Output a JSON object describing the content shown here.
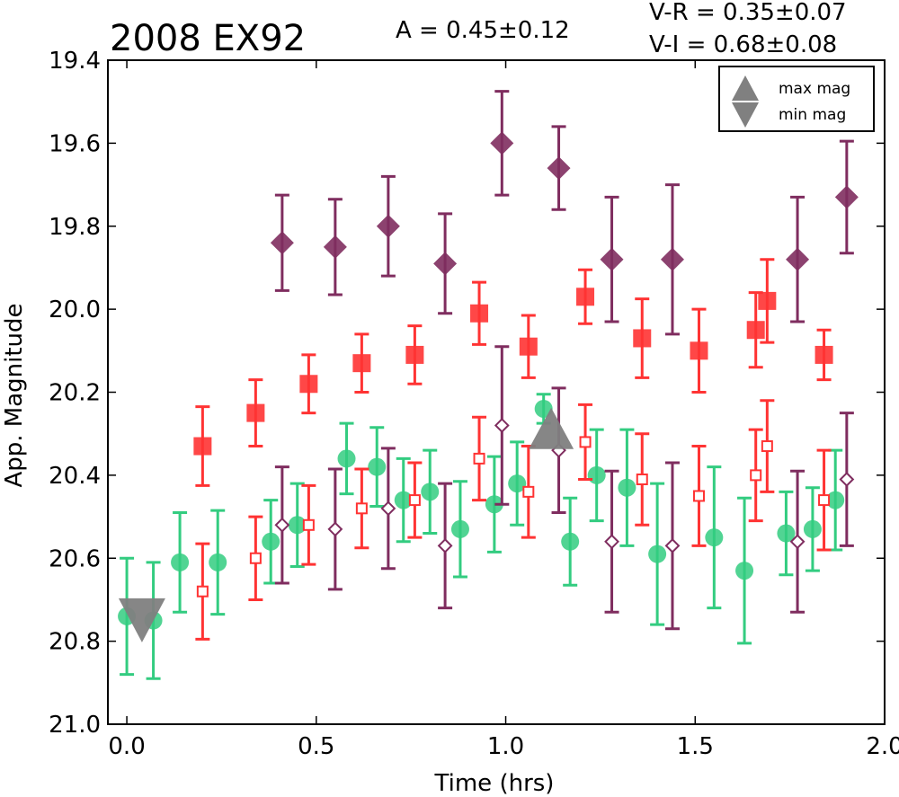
{
  "chart_data": {
    "type": "scatter",
    "title": "2008 EX92",
    "amplitude_text": "A  = 0.45±0.12",
    "color_text_1": "V-R = 0.35±0.07",
    "color_text_2": "V-I  = 0.68±0.08",
    "xlabel": "Time (hrs)",
    "ylabel": "App. Magnitude",
    "xlim": [
      -0.05,
      2.0
    ],
    "ylim": [
      21.0,
      19.4
    ],
    "y_inverted": true,
    "x_ticks": [
      "0.0",
      "0.5",
      "1.0",
      "1.5",
      "2.0"
    ],
    "x_tick_values": [
      0.0,
      0.5,
      1.0,
      1.5,
      2.0
    ],
    "y_ticks": [
      "19.4",
      "19.6",
      "19.8",
      "20.0",
      "20.2",
      "20.4",
      "20.6",
      "20.8",
      "21.0"
    ],
    "y_tick_values": [
      19.4,
      19.6,
      19.8,
      20.0,
      20.2,
      20.4,
      20.6,
      20.8,
      21.0
    ],
    "grid": false,
    "legend_position": "top-right",
    "legend": [
      {
        "label": "max mag",
        "marker": "triangle-up",
        "color": "#808080"
      },
      {
        "label": "min mag",
        "marker": "triangle-down",
        "color": "#808080"
      }
    ],
    "series": [
      {
        "marker": "diamond-filled",
        "color": "#7f2d5f",
        "points": [
          {
            "x": 0.41,
            "y": 19.84,
            "err": 0.115
          },
          {
            "x": 0.55,
            "y": 19.85,
            "err": 0.115
          },
          {
            "x": 0.69,
            "y": 19.8,
            "err": 0.12
          },
          {
            "x": 0.84,
            "y": 19.89,
            "err": 0.12
          },
          {
            "x": 0.99,
            "y": 19.6,
            "err": 0.125
          },
          {
            "x": 1.14,
            "y": 19.66,
            "err": 0.1
          },
          {
            "x": 1.28,
            "y": 19.88,
            "err": 0.15
          },
          {
            "x": 1.44,
            "y": 19.88,
            "err": 0.18
          },
          {
            "x": 1.77,
            "y": 19.88,
            "err": 0.15
          },
          {
            "x": 1.9,
            "y": 19.73,
            "err": 0.135
          }
        ]
      },
      {
        "marker": "square-filled",
        "color": "#ff3333",
        "points": [
          {
            "x": 0.2,
            "y": 20.33,
            "err": 0.095
          },
          {
            "x": 0.34,
            "y": 20.25,
            "err": 0.08
          },
          {
            "x": 0.48,
            "y": 20.18,
            "err": 0.07
          },
          {
            "x": 0.62,
            "y": 20.13,
            "err": 0.07
          },
          {
            "x": 0.76,
            "y": 20.11,
            "err": 0.07
          },
          {
            "x": 0.93,
            "y": 20.01,
            "err": 0.075
          },
          {
            "x": 1.06,
            "y": 20.09,
            "err": 0.075
          },
          {
            "x": 1.21,
            "y": 19.97,
            "err": 0.065
          },
          {
            "x": 1.36,
            "y": 20.07,
            "err": 0.095
          },
          {
            "x": 1.51,
            "y": 20.1,
            "err": 0.1
          },
          {
            "x": 1.66,
            "y": 20.05,
            "err": 0.09
          },
          {
            "x": 1.69,
            "y": 19.98,
            "err": 0.1
          },
          {
            "x": 1.84,
            "y": 20.11,
            "err": 0.06
          }
        ]
      },
      {
        "marker": "circle-filled",
        "color": "#33cc80",
        "points": [
          {
            "x": 0.0,
            "y": 20.74,
            "err": 0.14
          },
          {
            "x": 0.07,
            "y": 20.75,
            "err": 0.14
          },
          {
            "x": 0.14,
            "y": 20.61,
            "err": 0.12
          },
          {
            "x": 0.24,
            "y": 20.61,
            "err": 0.125
          },
          {
            "x": 0.38,
            "y": 20.56,
            "err": 0.1
          },
          {
            "x": 0.45,
            "y": 20.52,
            "err": 0.1
          },
          {
            "x": 0.58,
            "y": 20.36,
            "err": 0.085
          },
          {
            "x": 0.66,
            "y": 20.38,
            "err": 0.095
          },
          {
            "x": 0.73,
            "y": 20.46,
            "err": 0.1
          },
          {
            "x": 0.8,
            "y": 20.44,
            "err": 0.1
          },
          {
            "x": 0.88,
            "y": 20.53,
            "err": 0.115
          },
          {
            "x": 0.97,
            "y": 20.47,
            "err": 0.115
          },
          {
            "x": 1.03,
            "y": 20.42,
            "err": 0.1
          },
          {
            "x": 1.1,
            "y": 20.24,
            "err": 0.035
          },
          {
            "x": 1.17,
            "y": 20.56,
            "err": 0.105
          },
          {
            "x": 1.24,
            "y": 20.4,
            "err": 0.11
          },
          {
            "x": 1.32,
            "y": 20.43,
            "err": 0.14
          },
          {
            "x": 1.4,
            "y": 20.59,
            "err": 0.17
          },
          {
            "x": 1.55,
            "y": 20.55,
            "err": 0.17
          },
          {
            "x": 1.63,
            "y": 20.63,
            "err": 0.175
          },
          {
            "x": 1.74,
            "y": 20.54,
            "err": 0.1
          },
          {
            "x": 1.81,
            "y": 20.53,
            "err": 0.1
          },
          {
            "x": 1.87,
            "y": 20.46,
            "err": 0.12
          }
        ]
      },
      {
        "marker": "square-open",
        "color": "#ff3333",
        "points": [
          {
            "x": 0.2,
            "y": 20.68,
            "err": 0.115
          },
          {
            "x": 0.34,
            "y": 20.6,
            "err": 0.1
          },
          {
            "x": 0.48,
            "y": 20.52,
            "err": 0.095
          },
          {
            "x": 0.62,
            "y": 20.48,
            "err": 0.095
          },
          {
            "x": 0.76,
            "y": 20.46,
            "err": 0.09
          },
          {
            "x": 0.93,
            "y": 20.36,
            "err": 0.1
          },
          {
            "x": 1.06,
            "y": 20.44,
            "err": 0.11
          },
          {
            "x": 1.21,
            "y": 20.32,
            "err": 0.09
          },
          {
            "x": 1.36,
            "y": 20.41,
            "err": 0.11
          },
          {
            "x": 1.51,
            "y": 20.45,
            "err": 0.12
          },
          {
            "x": 1.66,
            "y": 20.4,
            "err": 0.11
          },
          {
            "x": 1.69,
            "y": 20.33,
            "err": 0.11
          },
          {
            "x": 1.84,
            "y": 20.46,
            "err": 0.12
          }
        ]
      },
      {
        "marker": "diamond-open",
        "color": "#7f2d5f",
        "points": [
          {
            "x": 0.41,
            "y": 20.52,
            "err": 0.14
          },
          {
            "x": 0.55,
            "y": 20.53,
            "err": 0.145
          },
          {
            "x": 0.69,
            "y": 20.48,
            "err": 0.145
          },
          {
            "x": 0.84,
            "y": 20.57,
            "err": 0.15
          },
          {
            "x": 0.99,
            "y": 20.28,
            "err": 0.19
          },
          {
            "x": 1.14,
            "y": 20.34,
            "err": 0.15
          },
          {
            "x": 1.28,
            "y": 20.56,
            "err": 0.17
          },
          {
            "x": 1.44,
            "y": 20.57,
            "err": 0.2
          },
          {
            "x": 1.77,
            "y": 20.56,
            "err": 0.17
          },
          {
            "x": 1.9,
            "y": 20.41,
            "err": 0.16
          }
        ]
      }
    ],
    "extrema_markers": [
      {
        "kind": "max mag",
        "marker": "triangle-up",
        "x": 1.12,
        "y": 20.3,
        "color": "#808080"
      },
      {
        "kind": "min mag",
        "marker": "triangle-down",
        "x": 0.04,
        "y": 20.74,
        "color": "#808080"
      }
    ]
  }
}
